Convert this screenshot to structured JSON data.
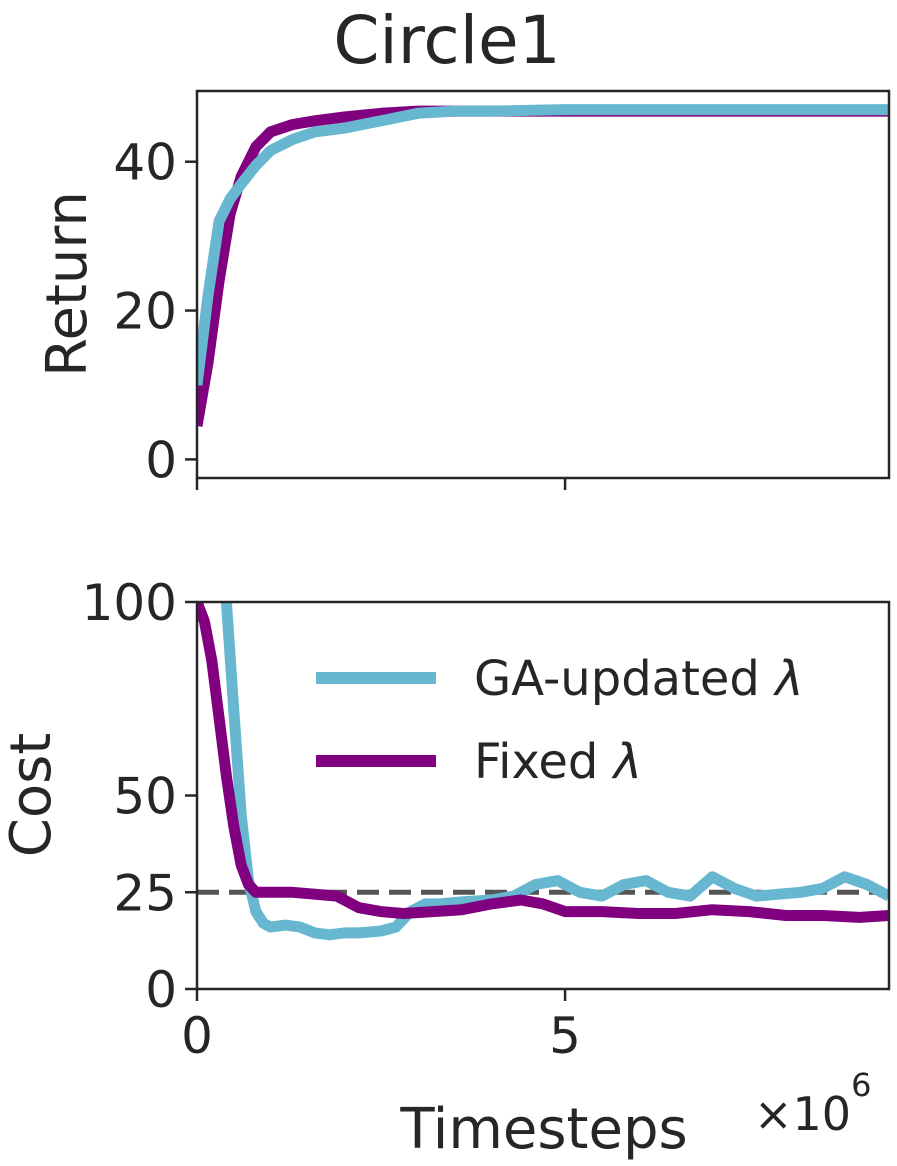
{
  "chart_data": [
    {
      "type": "line",
      "title": "Circle1",
      "xlabel": "",
      "ylabel": "Return",
      "xlim": [
        0,
        9.4
      ],
      "ylim": [
        -2.5,
        49.5
      ],
      "yticks": [
        0,
        20,
        40
      ],
      "ytick_labels": [
        "0",
        "20",
        "40"
      ],
      "x_scale_note": "×10^6",
      "series": [
        {
          "name": "Fixed λ",
          "color": "#800080",
          "x": [
            0,
            0.15,
            0.3,
            0.45,
            0.6,
            0.8,
            1.0,
            1.3,
            1.6,
            2.0,
            2.5,
            3.0,
            3.5,
            4.0,
            5.0,
            6.0,
            7.0,
            8.0,
            9.0,
            9.4
          ],
          "y": [
            4.5,
            13,
            24,
            33,
            38,
            42,
            44,
            45,
            45.5,
            46,
            46.5,
            46.8,
            46.8,
            46.8,
            46.8,
            46.8,
            46.8,
            46.8,
            46.8,
            46.8
          ]
        },
        {
          "name": "GA-updated λ",
          "color": "#67b7d1",
          "x": [
            0,
            0.15,
            0.3,
            0.45,
            0.6,
            0.8,
            1.0,
            1.3,
            1.6,
            2.0,
            2.5,
            3.0,
            3.5,
            4.0,
            5.0,
            6.0,
            7.0,
            8.0,
            9.0,
            9.4
          ],
          "y": [
            10,
            22,
            32,
            35,
            37,
            39.5,
            41.5,
            43,
            44,
            44.5,
            45.5,
            46.5,
            46.8,
            46.8,
            47,
            47,
            47,
            47,
            47,
            47
          ]
        }
      ]
    },
    {
      "type": "line",
      "title": "",
      "xlabel": "Timesteps",
      "ylabel": "Cost",
      "xlim": [
        0,
        9.4
      ],
      "ylim": [
        0,
        100
      ],
      "yticks": [
        0,
        25,
        50,
        100
      ],
      "ytick_labels": [
        "0",
        "25",
        "50",
        "100"
      ],
      "xticks": [
        0,
        5
      ],
      "xtick_labels": [
        "0",
        "5"
      ],
      "x_scale_note": "×10^6",
      "threshold": 25,
      "threshold_color": "#555555",
      "legend": {
        "placement": "upper-right",
        "entries": [
          "GA-updated λ",
          "Fixed λ"
        ]
      },
      "series": [
        {
          "name": "GA-updated λ",
          "color": "#67b7d1",
          "x": [
            0.4,
            0.5,
            0.6,
            0.7,
            0.8,
            0.9,
            1.0,
            1.2,
            1.4,
            1.6,
            1.8,
            2.0,
            2.2,
            2.5,
            2.7,
            2.9,
            3.1,
            3.3,
            3.6,
            4.0,
            4.3,
            4.6,
            4.9,
            5.2,
            5.5,
            5.8,
            6.1,
            6.4,
            6.7,
            7.0,
            7.3,
            7.6,
            7.9,
            8.2,
            8.5,
            8.8,
            9.1,
            9.4
          ],
          "y": [
            100,
            72,
            45,
            28,
            20,
            17,
            16,
            16.5,
            16,
            14.5,
            14,
            14.5,
            14.5,
            15,
            16,
            20,
            22,
            22,
            22.5,
            23,
            24,
            27,
            28,
            25,
            24,
            27,
            28,
            25,
            24,
            29,
            26,
            24,
            24.5,
            25,
            26,
            29,
            27,
            24
          ]
        },
        {
          "name": "Fixed λ",
          "color": "#800080",
          "x": [
            0,
            0.1,
            0.2,
            0.3,
            0.4,
            0.5,
            0.6,
            0.7,
            0.8,
            1.0,
            1.3,
            1.6,
            1.9,
            2.2,
            2.5,
            2.8,
            3.2,
            3.6,
            4.0,
            4.4,
            4.7,
            5.0,
            5.5,
            6.0,
            6.5,
            7.0,
            7.5,
            8.0,
            8.5,
            9.0,
            9.4
          ],
          "y": [
            100,
            95,
            85,
            70,
            55,
            42,
            32,
            27,
            25,
            25,
            25,
            24.5,
            24,
            21,
            20,
            19.5,
            20,
            20.5,
            22,
            23,
            22,
            20,
            20,
            19.5,
            19.5,
            20.5,
            20,
            19,
            19,
            18.5,
            19
          ]
        }
      ]
    }
  ]
}
